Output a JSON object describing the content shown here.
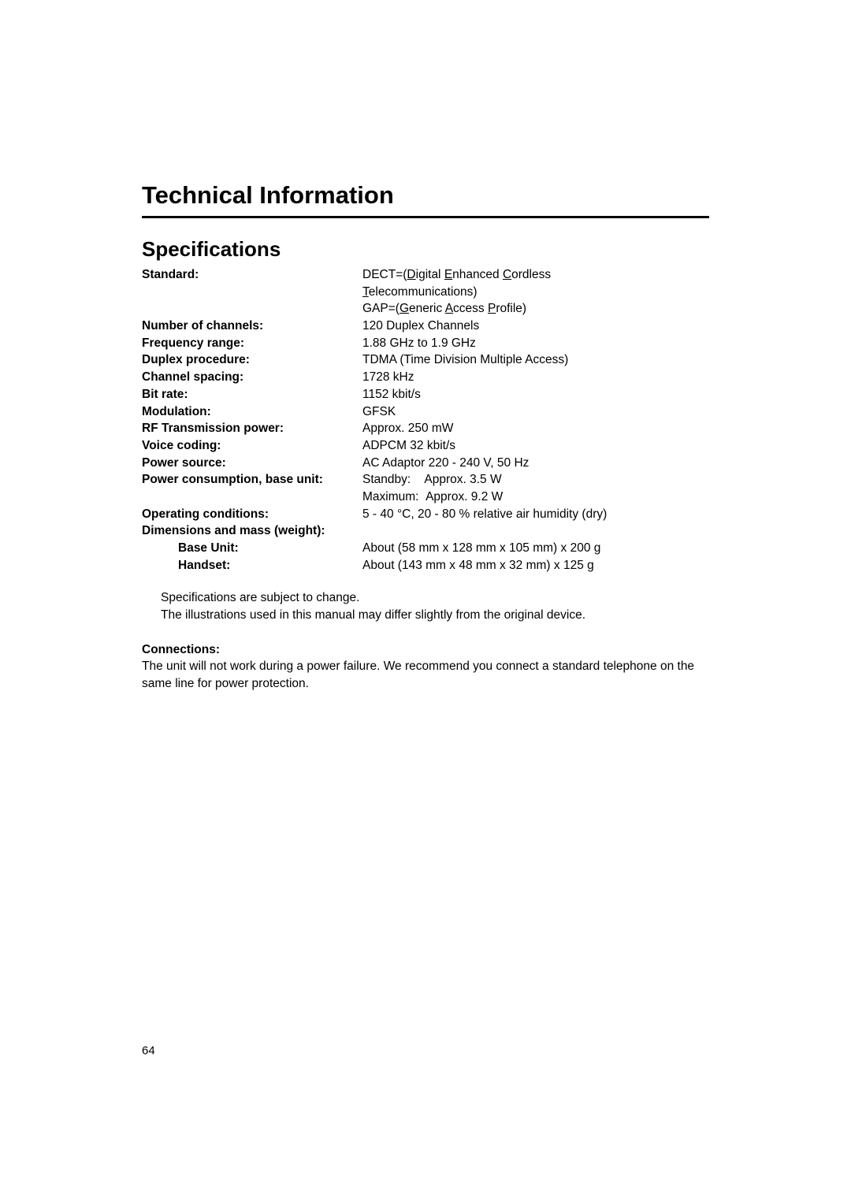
{
  "page": {
    "title": "Technical Information",
    "section_title": "Specifications",
    "page_number": "64"
  },
  "specs": {
    "standard_label": "Standard:",
    "standard_value_line1_prefix": "DECT=(",
    "standard_d": "D",
    "standard_igital": "igital ",
    "standard_e": "E",
    "standard_nhanced": "nhanced ",
    "standard_c": "C",
    "standard_ordless": "ordless",
    "standard_t": "T",
    "standard_elecom": "elecommunications)",
    "gap_prefix": "GAP=(",
    "gap_g": "G",
    "gap_eneric": "eneric ",
    "gap_a": "A",
    "gap_ccess": "ccess ",
    "gap_p": "P",
    "gap_rofile": "rofile)",
    "channels_label": "Number of channels:",
    "channels_value": "120 Duplex Channels",
    "frequency_label": "Frequency range:",
    "frequency_value": "1.88 GHz to 1.9 GHz",
    "duplex_label": "Duplex procedure:",
    "duplex_value": "TDMA (Time Division Multiple Access)",
    "channel_spacing_label": "Channel spacing:",
    "channel_spacing_value": "1728 kHz",
    "bitrate_label": "Bit rate:",
    "bitrate_value": "1152 kbit/s",
    "modulation_label": "Modulation:",
    "modulation_value": "GFSK",
    "rf_label": "RF Transmission power:",
    "rf_value": "Approx. 250 mW",
    "voice_label": "Voice coding:",
    "voice_value": "ADPCM 32 kbit/s",
    "power_source_label": "Power source:",
    "power_source_value": "AC Adaptor 220 - 240 V, 50 Hz",
    "power_consumption_label": "Power consumption, base unit:",
    "power_consumption_standby": "Standby:    Approx. 3.5 W",
    "power_consumption_max": "Maximum:  Approx. 9.2 W",
    "operating_label": "Operating conditions:",
    "operating_value": "5 - 40 °C, 20 - 80 % relative air humidity (dry)",
    "dimensions_label": "Dimensions and mass (weight):",
    "base_unit_label": "Base Unit:",
    "base_unit_value": "About (58 mm x 128 mm x 105 mm) x 200 g",
    "handset_label": "Handset:",
    "handset_value": "About (143 mm x 48 mm x 32 mm) x 125 g"
  },
  "notes": {
    "line1": "Specifications are subject to change.",
    "line2": "The illustrations used in this manual may differ slightly from the original device."
  },
  "connections": {
    "label": "Connections:",
    "text": "The unit will not work during a power failure. We recommend you connect a standard telephone on the same line for power protection."
  }
}
